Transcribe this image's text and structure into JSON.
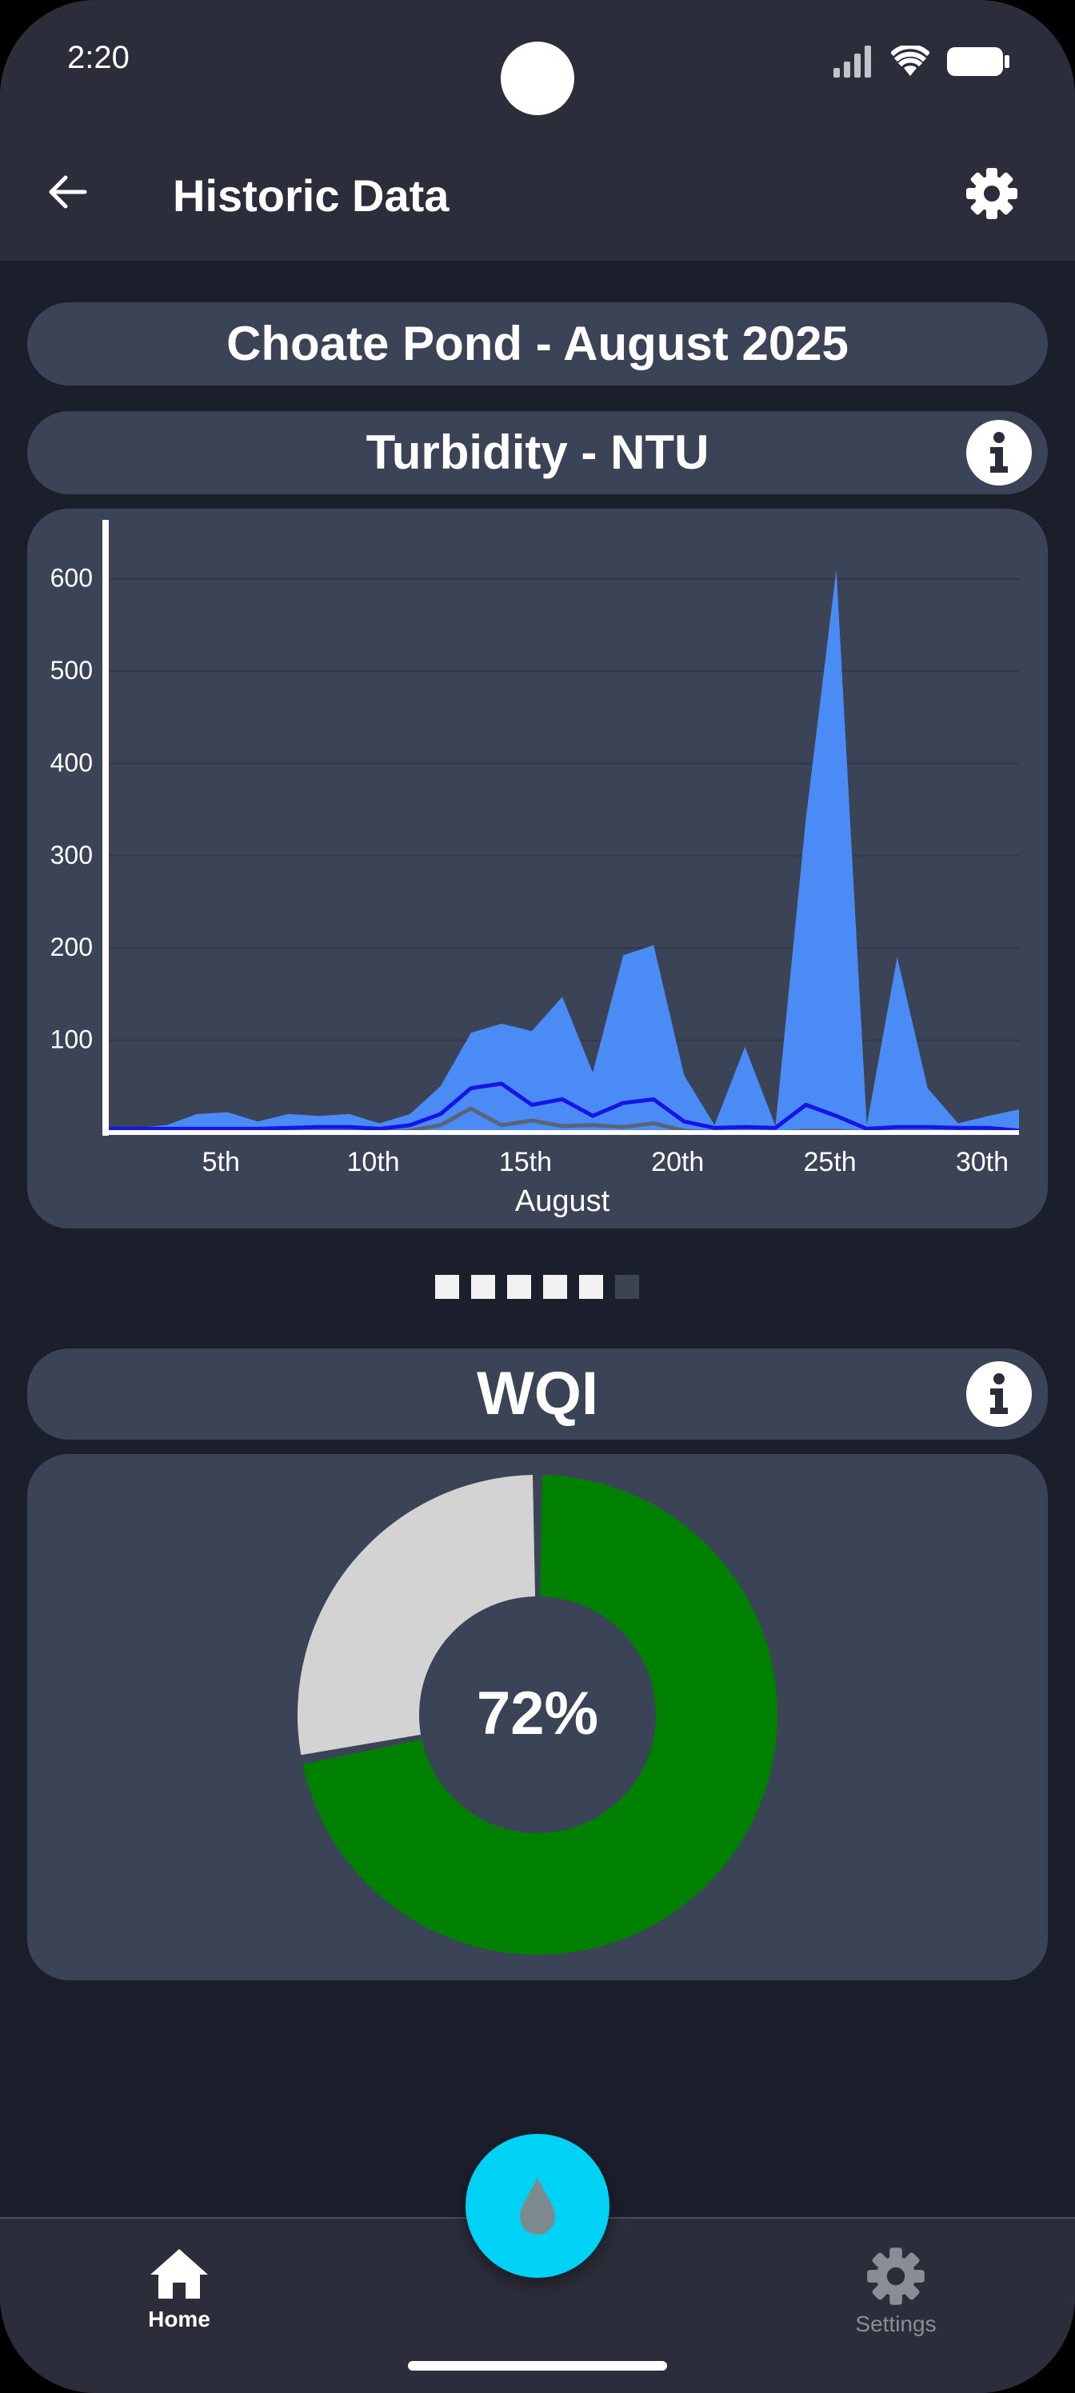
{
  "status_bar": {
    "time": "2:20"
  },
  "app_bar": {
    "title": "Historic Data"
  },
  "location_title": "Choate Pond - August 2025",
  "chart_section": {
    "title": "Turbidity - NTU"
  },
  "chart_data": {
    "type": "area",
    "title": "Turbidity - NTU",
    "xlabel": "August",
    "ylabel": "",
    "x": [
      1,
      2,
      3,
      4,
      5,
      6,
      7,
      8,
      9,
      10,
      11,
      12,
      13,
      14,
      15,
      16,
      17,
      18,
      19,
      20,
      21,
      22,
      23,
      24,
      25,
      26,
      27,
      28,
      29,
      30,
      31
    ],
    "x_ticks": [
      5,
      10,
      15,
      20,
      25,
      30
    ],
    "x_tick_labels": [
      "5th",
      "10th",
      "15th",
      "20th",
      "25th",
      "30th"
    ],
    "y_ticks": [
      100,
      200,
      300,
      400,
      500,
      600
    ],
    "ylim": [
      0,
      650
    ],
    "xlim": [
      1,
      31
    ],
    "grid": true,
    "colors": {
      "max_area": "#4b8bf5",
      "mean_line": "#1515e8",
      "min_line": "#5a6478",
      "axis": "#ffffff",
      "grid": "#2f3848"
    },
    "series": [
      {
        "values": [
          5,
          5,
          8,
          20,
          22,
          12,
          20,
          18,
          20,
          10,
          20,
          50,
          108,
          118,
          110,
          147,
          65,
          192,
          203,
          62,
          8,
          93,
          7,
          340,
          610,
          8,
          190,
          48,
          10,
          18,
          25
        ]
      },
      {
        "values": [
          4,
          4,
          4,
          4,
          4,
          4,
          5,
          6,
          6,
          4,
          8,
          20,
          48,
          53,
          30,
          36,
          18,
          32,
          36,
          12,
          5,
          6,
          5,
          30,
          18,
          4,
          6,
          6,
          5,
          5,
          2
        ]
      },
      {
        "values": [
          0,
          0,
          0,
          0,
          0,
          0,
          0,
          1,
          1,
          0,
          2,
          8,
          26,
          8,
          13,
          7,
          8,
          6,
          10,
          2,
          0,
          1,
          0,
          2,
          2,
          0,
          1,
          1,
          0,
          0,
          0
        ]
      }
    ]
  },
  "carousel": {
    "pages": 6,
    "active": 5
  },
  "wqi_section": {
    "title": "WQI"
  },
  "wqi_chart": {
    "value_label": "72%",
    "percent": 72,
    "colors": {
      "fill": "#008000",
      "remaining": "#d3d3d3"
    }
  },
  "bottom_nav": {
    "home_label": "Home",
    "settings_label": "Settings"
  },
  "colors": {
    "background": "#1b1f2b",
    "bar": "#2b2d3a",
    "card": "#3a4456",
    "fab": "#00d2f5"
  }
}
